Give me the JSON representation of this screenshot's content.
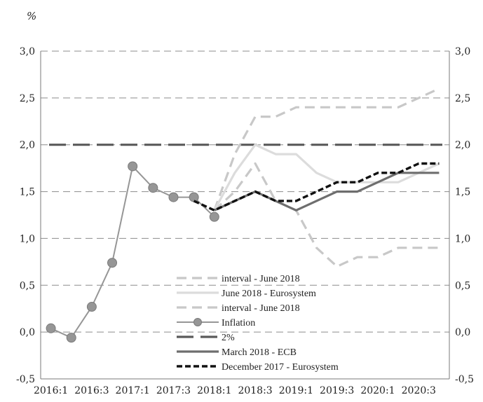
{
  "chart_data": {
    "type": "line",
    "unit_label": "%",
    "x_tick_labels": [
      "2016:1",
      "2016:3",
      "2017:1",
      "2017:3",
      "2018:1",
      "2018:3",
      "2019:1",
      "2019:3",
      "2020:1",
      "2020:3"
    ],
    "y_tick_labels": [
      "-0,5",
      "0,0",
      "0,5",
      "1,0",
      "1,5",
      "2,0",
      "2,5",
      "3,0"
    ],
    "ylim": [
      -0.5,
      3.0
    ],
    "grid": true,
    "legend_position": "bottom-center",
    "series": [
      {
        "name": "interval - June 2018",
        "style": "dashed",
        "color": "#c8c8c8",
        "x": [
          "2018:1",
          "2018:2",
          "2018:3",
          "2018:4",
          "2019:1",
          "2019:2",
          "2019:3",
          "2019:4",
          "2020:1",
          "2020:2",
          "2020:3",
          "2020:4"
        ],
        "values": [
          1.3,
          1.9,
          2.3,
          2.3,
          2.4,
          2.4,
          2.4,
          2.4,
          2.4,
          2.4,
          2.5,
          2.6
        ]
      },
      {
        "name": "June 2018 - Eurosystem",
        "style": "solid",
        "color": "#dcdcdc",
        "x": [
          "2018:1",
          "2018:2",
          "2018:3",
          "2018:4",
          "2019:1",
          "2019:2",
          "2019:3",
          "2019:4",
          "2020:1",
          "2020:2",
          "2020:3",
          "2020:4"
        ],
        "values": [
          1.3,
          1.7,
          2.0,
          1.9,
          1.9,
          1.7,
          1.6,
          1.6,
          1.6,
          1.6,
          1.7,
          1.8
        ]
      },
      {
        "name": "interval - June 2018",
        "style": "dashed",
        "color": "#c8c8c8",
        "x": [
          "2018:1",
          "2018:2",
          "2018:3",
          "2018:4",
          "2019:1",
          "2019:2",
          "2019:3",
          "2019:4",
          "2020:1",
          "2020:2",
          "2020:3",
          "2020:4"
        ],
        "values": [
          1.3,
          1.5,
          1.8,
          1.4,
          1.3,
          0.9,
          0.7,
          0.8,
          0.8,
          0.9,
          0.9,
          0.9
        ]
      },
      {
        "name": "Inflation",
        "style": "solid-marker",
        "color": "#969696",
        "x": [
          "2016:1",
          "2016:2",
          "2016:3",
          "2016:4",
          "2017:1",
          "2017:2",
          "2017:3",
          "2017:4",
          "2018:1"
        ],
        "values": [
          0.04,
          -0.06,
          0.27,
          0.74,
          1.77,
          1.54,
          1.44,
          1.44,
          1.23
        ]
      },
      {
        "name": "2%",
        "style": "long-dash",
        "color": "#5a5a5a",
        "x": [
          "2016:1",
          "2020:4"
        ],
        "values": [
          2.0,
          2.0
        ]
      },
      {
        "name": "March 2018 - ECB",
        "style": "solid",
        "color": "#6e6e6e",
        "x": [
          "2018:1",
          "2018:2",
          "2018:3",
          "2018:4",
          "2019:1",
          "2019:2",
          "2019:3",
          "2019:4",
          "2020:1",
          "2020:2",
          "2020:3",
          "2020:4"
        ],
        "values": [
          1.3,
          1.4,
          1.5,
          1.4,
          1.3,
          1.4,
          1.5,
          1.5,
          1.6,
          1.7,
          1.7,
          1.7
        ]
      },
      {
        "name": "December 2017 - Eurosystem",
        "style": "dashed",
        "color": "#111111",
        "x": [
          "2017:4",
          "2018:1",
          "2018:2",
          "2018:3",
          "2018:4",
          "2019:1",
          "2019:2",
          "2019:3",
          "2019:4",
          "2020:1",
          "2020:2",
          "2020:3",
          "2020:4"
        ],
        "values": [
          1.4,
          1.3,
          1.4,
          1.5,
          1.4,
          1.4,
          1.5,
          1.6,
          1.6,
          1.7,
          1.7,
          1.8,
          1.8
        ]
      }
    ]
  }
}
